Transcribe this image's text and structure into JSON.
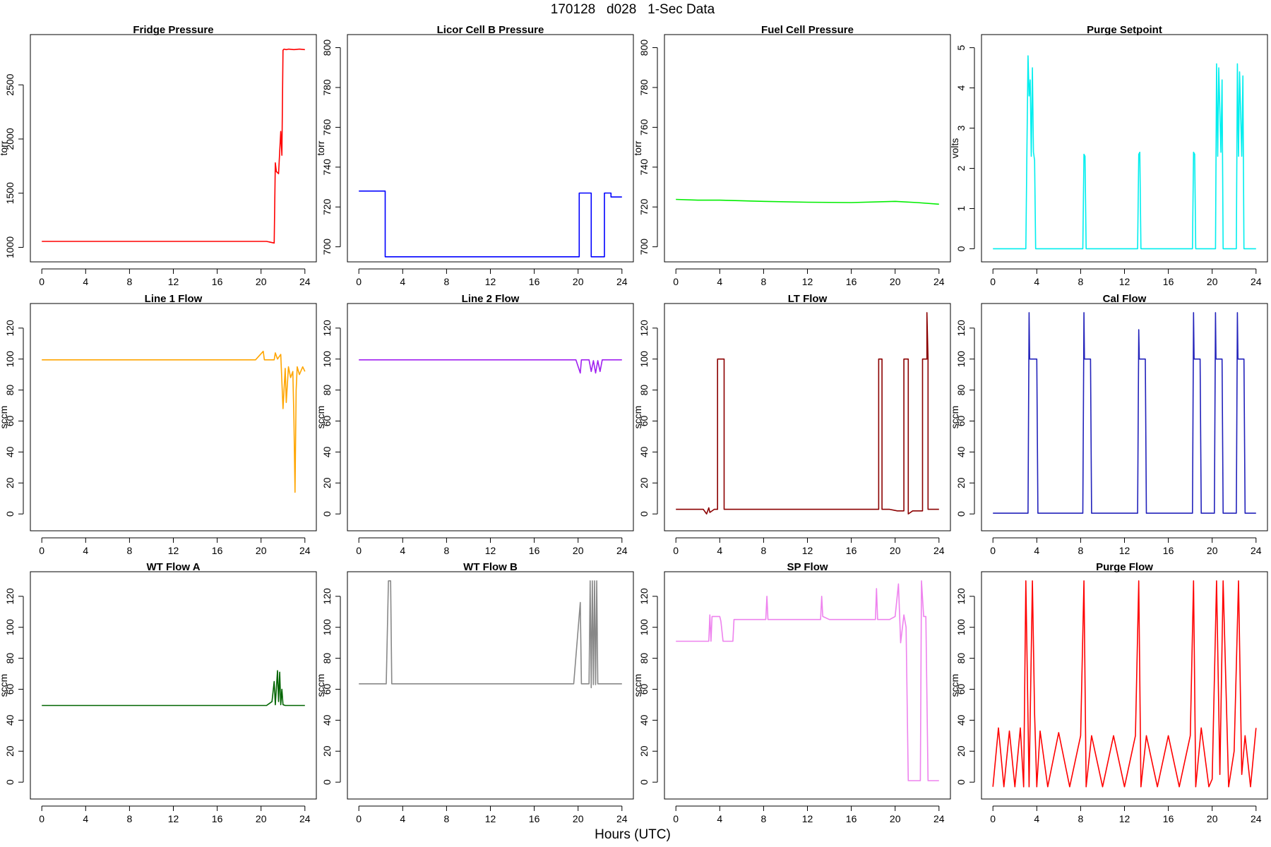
{
  "figure": {
    "title": "170128   d028   1-Sec Data",
    "xlabel": "Hours (UTC)"
  },
  "chart_data": [
    {
      "type": "line",
      "title": "Fridge Pressure",
      "ylabel": "torr",
      "color": "#ff0000",
      "xlim": [
        0,
        24
      ],
      "xticks": [
        0,
        4,
        8,
        12,
        16,
        20,
        24
      ],
      "ylim": [
        950,
        2880
      ],
      "yticks": [
        1000,
        1500,
        2000,
        2500
      ],
      "series": [
        {
          "name": "Fridge Pressure",
          "x": [
            0,
            3,
            6,
            10,
            14,
            18,
            20.5,
            21.2,
            21.3,
            21.4,
            21.6,
            21.8,
            21.9,
            22.0,
            22.1,
            22.3,
            22.5,
            23.0,
            23.5,
            24
          ],
          "y": [
            1055,
            1055,
            1055,
            1055,
            1055,
            1055,
            1055,
            1040,
            1780,
            1700,
            1680,
            2070,
            1850,
            2820,
            2830,
            2825,
            2830,
            2825,
            2830,
            2825
          ]
        }
      ]
    },
    {
      "type": "line",
      "title": "Licor Cell B Pressure",
      "ylabel": "torr",
      "color": "#0000ff",
      "xlim": [
        0,
        24
      ],
      "xticks": [
        0,
        4,
        8,
        12,
        16,
        20,
        24
      ],
      "ylim": [
        697,
        802
      ],
      "yticks": [
        700,
        720,
        740,
        760,
        780,
        800
      ],
      "series": [
        {
          "name": "Licor Cell B Pressure",
          "x": [
            0,
            2.4,
            2.4,
            20.1,
            20.1,
            21.2,
            21.2,
            22.4,
            22.4,
            23.0,
            23.0,
            24
          ],
          "y": [
            728,
            728,
            695,
            695,
            727,
            727,
            695,
            695,
            727,
            727,
            725,
            725
          ]
        }
      ]
    },
    {
      "type": "line",
      "title": "Fuel Cell Pressure",
      "ylabel": "torr",
      "color": "#00ee00",
      "xlim": [
        0,
        24
      ],
      "xticks": [
        0,
        4,
        8,
        12,
        16,
        20,
        24
      ],
      "ylim": [
        697,
        802
      ],
      "yticks": [
        700,
        720,
        740,
        760,
        780,
        800
      ],
      "series": [
        {
          "name": "Fuel Cell Pressure",
          "x": [
            0,
            2,
            4,
            8,
            12,
            16,
            20,
            22,
            24
          ],
          "y": [
            723.8,
            723.4,
            723.4,
            722.8,
            722.4,
            722.2,
            722.8,
            722.2,
            721.4
          ]
        }
      ]
    },
    {
      "type": "line",
      "title": "Purge Setpoint",
      "ylabel": "volts",
      "color": "#00eeee",
      "xlim": [
        0,
        24
      ],
      "xticks": [
        0,
        4,
        8,
        12,
        16,
        20,
        24
      ],
      "ylim": [
        -0.1,
        5.1
      ],
      "yticks": [
        0,
        1,
        2,
        3,
        4,
        5
      ],
      "series": [
        {
          "name": "Purge Setpoint",
          "x": [
            0,
            3.0,
            3.1,
            3.2,
            3.3,
            3.4,
            3.5,
            3.6,
            3.7,
            3.8,
            3.9,
            4.0,
            8.2,
            8.3,
            8.4,
            8.5,
            13.2,
            13.3,
            13.4,
            13.5,
            18.2,
            18.3,
            18.4,
            18.5,
            20.3,
            20.4,
            20.5,
            20.6,
            20.8,
            20.9,
            21.0,
            22.2,
            22.3,
            22.4,
            22.5,
            22.7,
            22.8,
            22.9,
            24
          ],
          "y": [
            0,
            0,
            2.4,
            4.8,
            3.8,
            4.2,
            2.3,
            4.5,
            2.4,
            2.2,
            0,
            0,
            0,
            2.35,
            2.3,
            0,
            0,
            2.35,
            2.4,
            0,
            0,
            2.4,
            2.35,
            0,
            0,
            4.6,
            2.3,
            4.5,
            2.4,
            4.2,
            0,
            0,
            4.6,
            2.3,
            4.4,
            2.3,
            4.3,
            0,
            0
          ]
        }
      ]
    },
    {
      "type": "line",
      "title": "Line 1 Flow",
      "ylabel": "sccm",
      "color": "#ffa500",
      "xlim": [
        0,
        24
      ],
      "xticks": [
        0,
        4,
        8,
        12,
        16,
        20,
        24
      ],
      "ylim": [
        -5,
        130
      ],
      "yticks": [
        0,
        20,
        40,
        60,
        80,
        100,
        120
      ],
      "series": [
        {
          "name": "Line 1 Flow",
          "x": [
            0,
            4,
            8,
            12,
            16,
            19.5,
            20.2,
            20.3,
            21.2,
            21.3,
            21.5,
            21.8,
            22.0,
            22.2,
            22.3,
            22.5,
            22.7,
            22.9,
            23.0,
            23.1,
            23.2,
            23.3,
            23.5,
            23.8,
            24
          ],
          "y": [
            99.5,
            99.5,
            99.5,
            99.5,
            99.5,
            99.5,
            105,
            99.5,
            99.5,
            104,
            100,
            103,
            68,
            94,
            72,
            95,
            88,
            92,
            60,
            14,
            80,
            95,
            90,
            95,
            92
          ]
        }
      ]
    },
    {
      "type": "line",
      "title": "Line 2 Flow",
      "ylabel": "sccm",
      "color": "#a020f0",
      "xlim": [
        0,
        24
      ],
      "xticks": [
        0,
        4,
        8,
        12,
        16,
        20,
        24
      ],
      "ylim": [
        -5,
        130
      ],
      "yticks": [
        0,
        20,
        40,
        60,
        80,
        100,
        120
      ],
      "series": [
        {
          "name": "Line 2 Flow",
          "x": [
            0,
            4,
            8,
            12,
            16,
            19.8,
            20.2,
            20.3,
            21.0,
            21.2,
            21.4,
            21.6,
            21.8,
            22.0,
            22.2,
            24
          ],
          "y": [
            99.5,
            99.5,
            99.5,
            99.5,
            99.5,
            99.5,
            91,
            99.5,
            99.5,
            92,
            99,
            91,
            99,
            92,
            99.5,
            99.5
          ]
        }
      ]
    },
    {
      "type": "line",
      "title": "LT Flow",
      "ylabel": "sccm",
      "color": "#8b0000",
      "xlim": [
        0,
        24
      ],
      "xticks": [
        0,
        4,
        8,
        12,
        16,
        20,
        24
      ],
      "ylim": [
        -5,
        130
      ],
      "yticks": [
        0,
        20,
        40,
        60,
        80,
        100,
        120
      ],
      "series": [
        {
          "name": "LT Flow",
          "x": [
            0,
            2.5,
            2.8,
            3.0,
            3.1,
            3.5,
            3.8,
            3.8,
            4.4,
            4.4,
            8,
            12,
            16,
            18.5,
            18.5,
            18.8,
            18.8,
            19.5,
            20.2,
            20.8,
            20.8,
            21.2,
            21.2,
            21.6,
            22.5,
            22.5,
            22.9,
            22.9,
            23.0,
            23.0,
            23.2,
            24
          ],
          "y": [
            3,
            3,
            0,
            4,
            1,
            3,
            3,
            100,
            100,
            3,
            3,
            3,
            3,
            3,
            100,
            100,
            3,
            3,
            2,
            2,
            100,
            100,
            0,
            2,
            2,
            100,
            100,
            130,
            100,
            3,
            3,
            3
          ]
        }
      ]
    },
    {
      "type": "line",
      "title": "Cal Flow",
      "ylabel": "sccm",
      "color": "#2222bb",
      "xlim": [
        0,
        24
      ],
      "xticks": [
        0,
        4,
        8,
        12,
        16,
        20,
        24
      ],
      "ylim": [
        -5,
        130
      ],
      "yticks": [
        0,
        20,
        40,
        60,
        80,
        100,
        120
      ],
      "series": [
        {
          "name": "Cal Flow",
          "x": [
            0,
            3.2,
            3.3,
            3.35,
            3.5,
            4.0,
            4.1,
            8.2,
            8.3,
            8.35,
            8.5,
            8.9,
            9.0,
            13.2,
            13.3,
            13.35,
            13.5,
            13.9,
            14.0,
            18.2,
            18.3,
            18.35,
            18.5,
            18.9,
            19.0,
            20.2,
            20.3,
            20.35,
            20.5,
            20.9,
            21.0,
            22.2,
            22.3,
            22.35,
            22.5,
            22.9,
            23.0,
            24
          ],
          "y": [
            0.5,
            0.5,
            130,
            100,
            100,
            100,
            0.5,
            0.5,
            130,
            100,
            100,
            100,
            0.5,
            0.5,
            119,
            100,
            100,
            100,
            0.5,
            0.5,
            130,
            100,
            100,
            100,
            0.5,
            0.5,
            130,
            100,
            100,
            100,
            0.5,
            0.5,
            130,
            100,
            100,
            100,
            0.5,
            0.5
          ]
        }
      ]
    },
    {
      "type": "line",
      "title": "WT Flow A",
      "ylabel": "sccm",
      "color": "#006400",
      "xlim": [
        0,
        24
      ],
      "xticks": [
        0,
        4,
        8,
        12,
        16,
        20,
        24
      ],
      "ylim": [
        -5,
        130
      ],
      "yticks": [
        0,
        20,
        40,
        60,
        80,
        100,
        120
      ],
      "series": [
        {
          "name": "WT Flow A",
          "x": [
            0,
            4,
            8,
            12,
            16,
            20.5,
            21.0,
            21.2,
            21.3,
            21.5,
            21.6,
            21.7,
            21.8,
            21.9,
            22.0,
            22.2,
            24
          ],
          "y": [
            49.5,
            49.5,
            49.5,
            49.5,
            49.5,
            49.5,
            52,
            65,
            50,
            72,
            52,
            71,
            50,
            60,
            50,
            49.5,
            49.5
          ]
        }
      ]
    },
    {
      "type": "line",
      "title": "WT Flow B",
      "ylabel": "sccm",
      "color": "#888888",
      "xlim": [
        0,
        24
      ],
      "xticks": [
        0,
        4,
        8,
        12,
        16,
        20,
        24
      ],
      "ylim": [
        -5,
        130
      ],
      "yticks": [
        0,
        20,
        40,
        60,
        80,
        100,
        120
      ],
      "series": [
        {
          "name": "WT Flow B",
          "x": [
            0,
            2.5,
            2.7,
            2.9,
            3.0,
            4,
            8,
            12,
            16,
            19.6,
            20.2,
            20.3,
            21.0,
            21.1,
            21.2,
            21.3,
            21.4,
            21.5,
            21.6,
            21.7,
            21.8,
            24
          ],
          "y": [
            63.5,
            63.5,
            130,
            130,
            63.5,
            63.5,
            63.5,
            63.5,
            63.5,
            63.5,
            116,
            63.5,
            63.5,
            130,
            61,
            130,
            63,
            130,
            63,
            130,
            63.5,
            63.5
          ]
        }
      ]
    },
    {
      "type": "line",
      "title": "SP Flow",
      "ylabel": "sccm",
      "color": "#ee82ee",
      "xlim": [
        0,
        24
      ],
      "xticks": [
        0,
        4,
        8,
        12,
        16,
        20,
        24
      ],
      "ylim": [
        -5,
        130
      ],
      "yticks": [
        0,
        20,
        40,
        60,
        80,
        100,
        120
      ],
      "series": [
        {
          "name": "SP Flow",
          "x": [
            0,
            2.5,
            3.0,
            3.1,
            3.2,
            3.3,
            3.5,
            4.0,
            4.1,
            4.3,
            5.2,
            5.3,
            8.2,
            8.3,
            8.4,
            9.0,
            13.2,
            13.3,
            13.4,
            14.0,
            18.2,
            18.3,
            18.4,
            19.0,
            19.5,
            20.0,
            20.3,
            20.5,
            20.8,
            21.0,
            21.2,
            21.4,
            22.3,
            22.4,
            22.6,
            22.8,
            23.0,
            23.5,
            24
          ],
          "y": [
            91,
            91,
            91,
            108,
            91,
            107,
            107,
            107,
            104,
            91,
            91,
            105,
            105,
            120,
            105,
            105,
            105,
            120,
            107,
            105,
            105,
            125,
            105,
            105,
            105,
            107,
            128,
            90,
            108,
            100,
            1,
            1,
            1,
            130,
            107,
            107,
            1,
            1,
            1
          ]
        }
      ]
    },
    {
      "type": "line",
      "title": "Purge Flow",
      "ylabel": "sccm",
      "color": "#ff0000",
      "xlim": [
        0,
        24
      ],
      "xticks": [
        0,
        4,
        8,
        12,
        16,
        20,
        24
      ],
      "ylim": [
        -5,
        130
      ],
      "yticks": [
        0,
        20,
        40,
        60,
        80,
        100,
        120
      ],
      "series": [
        {
          "name": "Purge Flow",
          "x": [
            0,
            0.5,
            1.0,
            1.5,
            2.0,
            2.5,
            2.8,
            3.0,
            3.3,
            3.6,
            3.8,
            4.0,
            4.3,
            5,
            6,
            7,
            8,
            8.3,
            8.5,
            9,
            10,
            11,
            12,
            13,
            13.3,
            13.5,
            14,
            15,
            16,
            17,
            18,
            18.3,
            18.5,
            19,
            19.7,
            20.0,
            20.4,
            20.7,
            21.0,
            21.5,
            22.0,
            22.4,
            22.7,
            23.0,
            23.5,
            24
          ],
          "y": [
            -3,
            35,
            -3,
            33,
            -3,
            35,
            -3,
            130,
            -3,
            130,
            44,
            -3,
            33,
            -3,
            32,
            -3,
            30,
            130,
            -3,
            30,
            -3,
            30,
            -3,
            30,
            130,
            -3,
            30,
            -3,
            30,
            -3,
            30,
            130,
            -3,
            35,
            -3,
            2,
            130,
            5,
            130,
            -3,
            20,
            130,
            5,
            30,
            -3,
            35
          ]
        }
      ]
    }
  ]
}
